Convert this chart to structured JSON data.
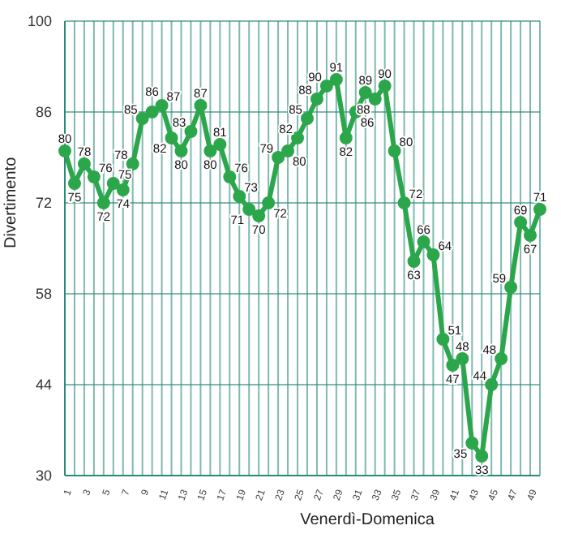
{
  "chart_data": {
    "type": "line",
    "xlabel": "Venerdì-Domenica",
    "ylabel": "Divertimento",
    "categories": [
      "1",
      null,
      "3",
      null,
      "5",
      null,
      "7",
      null,
      "9",
      null,
      "11",
      null,
      "13",
      null,
      "15",
      null,
      "17",
      null,
      "19",
      null,
      "21",
      null,
      "23",
      null,
      "25",
      null,
      "27",
      null,
      "29",
      null,
      "31",
      null,
      "33",
      null,
      "35",
      null,
      "37",
      null,
      "39",
      null,
      "41",
      null,
      "43",
      null,
      "45",
      null,
      "47",
      null,
      "49",
      null
    ],
    "series": [
      {
        "color": "#2ca64a",
        "values": [
          80,
          75,
          78,
          76,
          72,
          75,
          74,
          78,
          85,
          86,
          87,
          82,
          80,
          83,
          87,
          80,
          81,
          76,
          73,
          71,
          70,
          72,
          79,
          80,
          82,
          85,
          88,
          90,
          91,
          82,
          86,
          89,
          88,
          90,
          80,
          72,
          63,
          66,
          64,
          51,
          47,
          48,
          35,
          33,
          44,
          48,
          59,
          69,
          67,
          71
        ]
      }
    ],
    "ylim": [
      30,
      100
    ],
    "yticks": [
      30,
      44,
      58,
      72,
      86,
      100
    ],
    "grid": true,
    "marker": "circle",
    "line_style": "solid",
    "data_labels": true
  }
}
